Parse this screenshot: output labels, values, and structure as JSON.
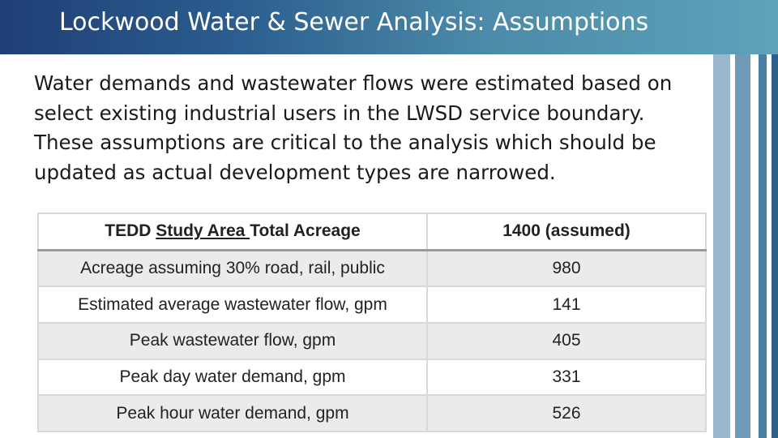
{
  "slide": {
    "title": "Lockwood Water & Sewer Analysis: Assumptions",
    "intro": "Water demands and wastewater flows were estimated based on select existing industrial users in the LWSD service boundary. These assumptions are critical to the analysis which should be updated as actual development types are narrowed."
  },
  "table": {
    "header": {
      "label_prefix": "TEDD ",
      "label_underlined": "Study Area ",
      "label_suffix": "Total Acreage",
      "value": "1400 (assumed)"
    },
    "rows": [
      {
        "label": "Acreage assuming 30% road, rail, public",
        "value": "980"
      },
      {
        "label": "Estimated average wastewater flow, gpm",
        "value": "141"
      },
      {
        "label": "Peak wastewater flow, gpm",
        "value": "405"
      },
      {
        "label": "Peak day water demand, gpm",
        "value": "331"
      },
      {
        "label": "Peak hour water demand, gpm",
        "value": "526"
      }
    ]
  }
}
